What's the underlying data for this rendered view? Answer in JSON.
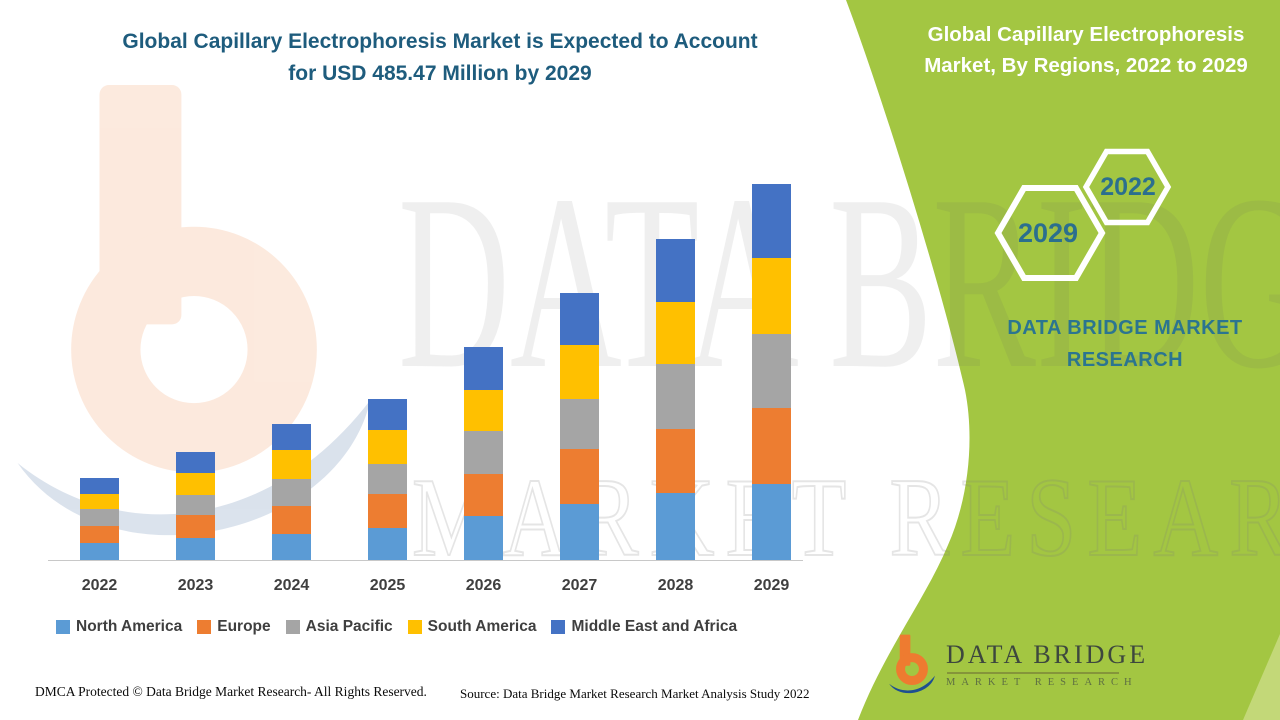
{
  "header": {
    "title_line1": "Global Capillary Electrophoresis Market is Expected to Account",
    "title_line2": "for USD 485.47 Million by 2029"
  },
  "side_panel": {
    "title_line1": "Global Capillary Electrophoresis",
    "title_line2": "Market, By Regions, 2022 to 2029",
    "hexagon_back_year": "2022",
    "hexagon_front_year": "2029",
    "brand_line1": "DATA BRIDGE MARKET",
    "brand_line2": "RESEARCH",
    "colors": {
      "green": "#a3c642",
      "light_green_wedge": "#c3d878",
      "teal_text": "#2b7590",
      "hex_stroke": "#ffffff"
    }
  },
  "chart_data": {
    "type": "bar",
    "stacked": true,
    "unit": "USD Million",
    "title": "Global Capillary Electrophoresis Market, By Regions, 2022 to 2029",
    "categories": [
      "2022",
      "2023",
      "2024",
      "2025",
      "2026",
      "2027",
      "2028",
      "2029"
    ],
    "series": [
      {
        "name": "North America",
        "color": "#5B9BD5",
        "values": [
          22,
          28,
          34,
          41,
          57,
          72,
          87,
          98
        ]
      },
      {
        "name": "Europe",
        "color": "#ED7D31",
        "values": [
          22,
          30,
          36,
          44,
          54,
          71,
          83,
          98
        ]
      },
      {
        "name": "Asia Pacific",
        "color": "#A5A5A5",
        "values": [
          22,
          26,
          35,
          39,
          56,
          65,
          84,
          96
        ]
      },
      {
        "name": "South America",
        "color": "#FFC000",
        "values": [
          19,
          28,
          37,
          44,
          53,
          70,
          80,
          98
        ]
      },
      {
        "name": "Middle East and Africa",
        "color": "#4472C4",
        "values": [
          21,
          27,
          34,
          40,
          56,
          67,
          81,
          95.47
        ]
      }
    ],
    "stack_order_bottom_to_top": [
      "North America",
      "Europe",
      "Asia Pacific",
      "South America",
      "Middle East and Africa"
    ],
    "estimated_totals": [
      106,
      139,
      176,
      208,
      276,
      345,
      415,
      485.47
    ],
    "ylim": [
      0,
      500
    ],
    "grid": false,
    "y_axis_visible": false,
    "legend_position": "bottom"
  },
  "watermark": {
    "big_text": "DATA BRIDGE",
    "outline_text": "MARKET RESEARCH"
  },
  "footer": {
    "dmca": "DMCA Protected © Data Bridge Market Research- All Rights Reserved.",
    "source": "Source: Data Bridge Market Research Market Analysis Study 2022"
  },
  "logo": {
    "name": "DATA BRIDGE",
    "tagline": "MARKET RESEARCH"
  }
}
